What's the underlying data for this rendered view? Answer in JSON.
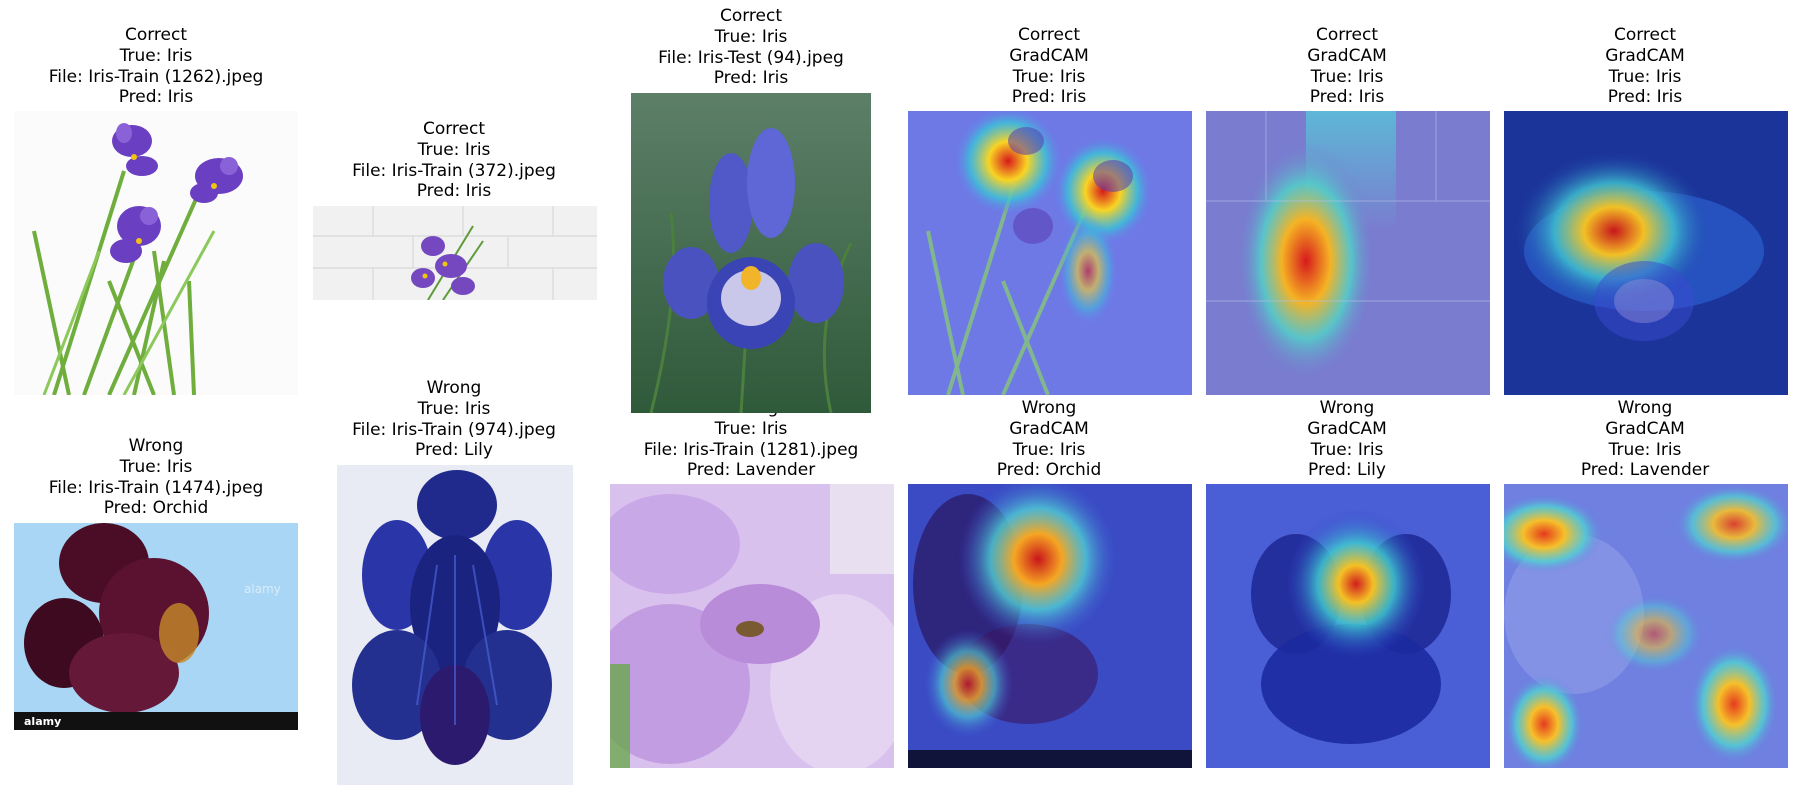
{
  "panels": [
    {
      "status": "Correct",
      "method": "",
      "true_label": "True: Iris",
      "file": "File: Iris-Train (1262).jpeg",
      "pred": "Pred: Iris",
      "image": "iris-bouquet-photo"
    },
    {
      "status": "Correct",
      "method": "",
      "true_label": "True: Iris",
      "file": "File: Iris-Train (372).jpeg",
      "pred": "Pred: Iris",
      "image": "iris-on-white-tiles-photo"
    },
    {
      "status": "Correct",
      "method": "",
      "true_label": "True: Iris",
      "file": "File: Iris-Test (94).jpeg",
      "pred": "Pred: Iris",
      "image": "blue-iris-photo"
    },
    {
      "status": "Correct",
      "method": "GradCAM",
      "true_label": "True: Iris",
      "file": "",
      "pred": "Pred: Iris",
      "image": "gradcam-heatmap-bouquet"
    },
    {
      "status": "Correct",
      "method": "GradCAM",
      "true_label": "True: Iris",
      "file": "",
      "pred": "Pred: Iris",
      "image": "gradcam-heatmap-tiles"
    },
    {
      "status": "Correct",
      "method": "GradCAM",
      "true_label": "True: Iris",
      "file": "",
      "pred": "Pred: Iris",
      "image": "gradcam-heatmap-blue-iris"
    },
    {
      "status": "Wrong",
      "method": "",
      "true_label": "True: Iris",
      "file": "File: Iris-Train (1474).jpeg",
      "pred": "Pred: Orchid",
      "image": "dark-red-iris-stock-photo"
    },
    {
      "status": "Wrong",
      "method": "",
      "true_label": "True: Iris",
      "file": "File: Iris-Train (974).jpeg",
      "pred": "Pred: Lily",
      "image": "painted-blue-iris"
    },
    {
      "status": "Wrong",
      "method": "",
      "true_label": "True: Iris",
      "file": "File: Iris-Train (1281).jpeg",
      "pred": "Pred: Lavender",
      "image": "lilac-iris-closeup-photo"
    },
    {
      "status": "Wrong",
      "method": "GradCAM",
      "true_label": "True: Iris",
      "file": "",
      "pred": "Pred: Orchid",
      "image": "gradcam-heatmap-dark-iris"
    },
    {
      "status": "Wrong",
      "method": "GradCAM",
      "true_label": "True: Iris",
      "file": "",
      "pred": "Pred: Lily",
      "image": "gradcam-heatmap-painted-iris"
    },
    {
      "status": "Wrong",
      "method": "GradCAM",
      "true_label": "True: Iris",
      "file": "",
      "pred": "Pred: Lavender",
      "image": "gradcam-heatmap-lilac-iris"
    }
  ],
  "watermarks": {
    "stock_brand": "alamy"
  },
  "colors": {
    "background": "#ffffff",
    "text": "#000000",
    "heatmap_low": "#3a46d8",
    "heatmap_high": "#d7191c"
  }
}
